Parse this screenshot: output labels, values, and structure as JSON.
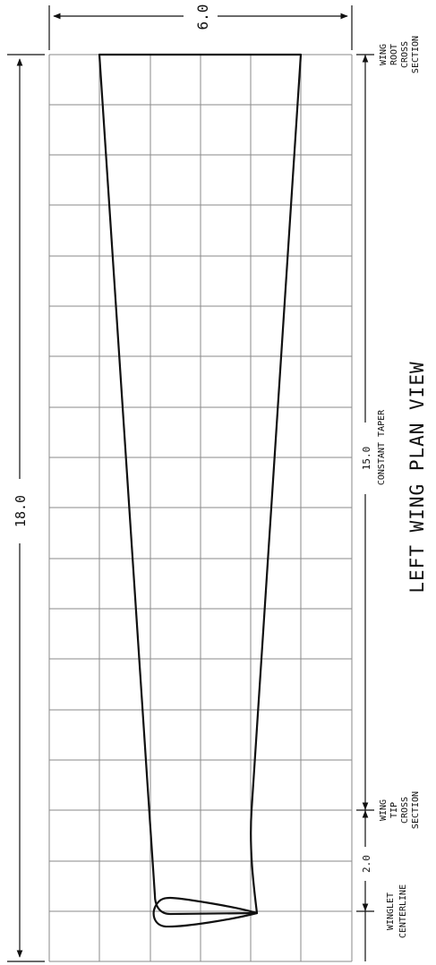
{
  "title": "LEFT WING PLAN VIEW",
  "dimensions": {
    "chord": "6.0",
    "span": "18.0",
    "taper": "15.0",
    "taper_note": "CONSTANT TAPER",
    "winglet": "2.0"
  },
  "stations": {
    "root": [
      "WING",
      "ROOT",
      "CROSS",
      "SECTION"
    ],
    "tip": [
      "WING",
      "TIP",
      "CROSS",
      "SECTION"
    ],
    "winglet": [
      "WINGLET",
      "CENTERLINE"
    ]
  }
}
